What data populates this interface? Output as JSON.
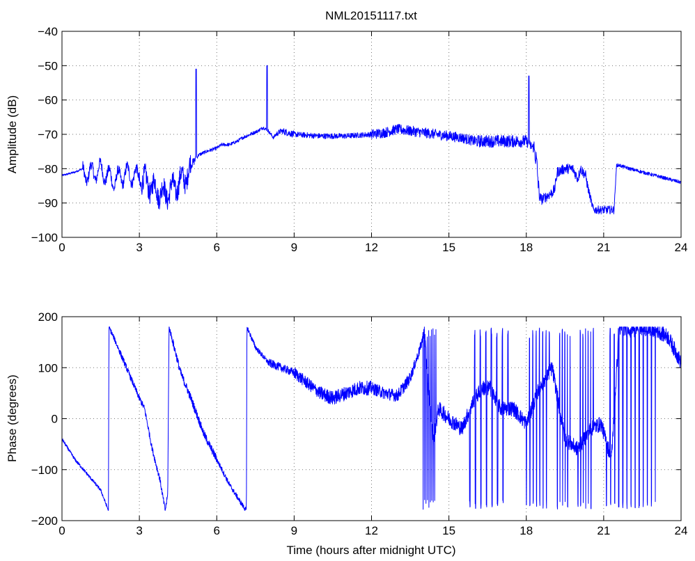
{
  "figure": {
    "title": "NML20151117.txt",
    "xlabel": "Time (hours after midnight UTC)"
  },
  "colors": {
    "trace": "#0000ff",
    "axes": "#000000",
    "background": "#ffffff"
  },
  "chart_data": [
    {
      "type": "line",
      "title": "NML20151117.txt",
      "xlabel": "",
      "ylabel": "Amplitude (dB)",
      "xlim": [
        0,
        24
      ],
      "ylim": [
        -100,
        -40
      ],
      "xticks": [
        0,
        3,
        6,
        9,
        12,
        15,
        18,
        21,
        24
      ],
      "yticks": [
        -100,
        -90,
        -80,
        -70,
        -60,
        -50,
        -40
      ],
      "xtick_labels": [
        "0",
        "3",
        "6",
        "9",
        "12",
        "15",
        "18",
        "21",
        "24"
      ],
      "ytick_labels": [
        "−100",
        "−90",
        "−80",
        "−70",
        "−60",
        "−50",
        "−40"
      ],
      "grid": true,
      "series": [
        {
          "color": "#0000ff",
          "noise_amplitude": [
            [
              0,
              0.3
            ],
            [
              0.8,
              1.5
            ],
            [
              3.0,
              3.0
            ],
            [
              5.0,
              1.2
            ],
            [
              5.2,
              0.5
            ],
            [
              8.3,
              0.8
            ],
            [
              8.6,
              1.0
            ],
            [
              9.0,
              0.8
            ],
            [
              12.0,
              1.5
            ],
            [
              16.0,
              1.8
            ],
            [
              18.0,
              1.5
            ],
            [
              18.3,
              3.0
            ],
            [
              18.5,
              1.5
            ],
            [
              20.4,
              1.2
            ],
            [
              21.4,
              0.5
            ],
            [
              24,
              0.6
            ]
          ],
          "x": [
            0,
            0.5,
            0.8,
            1.0,
            1.5,
            2.0,
            2.5,
            3.0,
            3.5,
            4.0,
            4.5,
            5.0,
            5.1,
            5.2,
            5.3,
            5.6,
            6.0,
            6.2,
            6.5,
            6.8,
            7.0,
            7.3,
            7.6,
            7.8,
            8.0,
            8.2,
            8.3,
            8.5,
            9.0,
            10.0,
            11.0,
            12.0,
            12.5,
            13.0,
            13.5,
            14.0,
            14.5,
            15.0,
            15.5,
            16.0,
            16.5,
            17.0,
            17.5,
            18.0,
            18.1,
            18.3,
            18.4,
            18.5,
            18.6,
            18.8,
            19.0,
            19.1,
            19.2,
            19.5,
            19.8,
            20.0,
            20.1,
            20.3,
            20.4,
            20.6,
            21.0,
            21.4,
            21.5,
            21.6,
            22.0,
            22.5,
            23.0,
            23.5,
            24.0
          ],
          "y": [
            -82,
            -81,
            -80,
            -80,
            -79,
            -82,
            -80,
            -81,
            -84,
            -86,
            -83,
            -79,
            -78,
            -77,
            -76,
            -75,
            -74,
            -73,
            -73,
            -72,
            -71,
            -70,
            -69,
            -68,
            -69,
            -71,
            -70,
            -69,
            -70,
            -70.5,
            -70.5,
            -70,
            -69.5,
            -68.5,
            -69,
            -69.5,
            -70,
            -70.5,
            -71,
            -72,
            -72,
            -72,
            -72,
            -72,
            -73,
            -74,
            -78,
            -88,
            -89,
            -88,
            -87,
            -86,
            -81,
            -80,
            -80,
            -83,
            -80,
            -82,
            -86,
            -92,
            -92,
            -92,
            -79,
            -79,
            -80,
            -81,
            -82,
            -83,
            -84
          ]
        }
      ],
      "spikes": [
        {
          "x": 5.2,
          "y": -51
        },
        {
          "x": 7.95,
          "y": -50
        },
        {
          "x": 18.1,
          "y": -53
        }
      ]
    },
    {
      "type": "line",
      "title": "",
      "xlabel": "Time (hours after midnight UTC)",
      "ylabel": "Phase (degrees)",
      "xlim": [
        0,
        24
      ],
      "ylim": [
        -200,
        200
      ],
      "xticks": [
        0,
        3,
        6,
        9,
        12,
        15,
        18,
        21,
        24
      ],
      "yticks": [
        -200,
        -100,
        0,
        100,
        200
      ],
      "xtick_labels": [
        "0",
        "3",
        "6",
        "9",
        "12",
        "15",
        "18",
        "21",
        "24"
      ],
      "ytick_labels": [
        "−200",
        "−100",
        "0",
        "100",
        "200"
      ],
      "grid": true,
      "series": [
        {
          "color": "#0000ff",
          "noise_amplitude": [
            [
              0,
              3
            ],
            [
              1.8,
              5
            ],
            [
              2.2,
              6
            ],
            [
              4.3,
              8
            ],
            [
              6.0,
              5
            ],
            [
              7.2,
              5
            ],
            [
              8.0,
              8
            ],
            [
              9.0,
              12
            ],
            [
              10.0,
              14
            ],
            [
              12.0,
              12
            ],
            [
              13.5,
              10
            ],
            [
              14.0,
              15
            ],
            [
              24,
              8
            ]
          ],
          "x": [
            0,
            0.5,
            1.0,
            1.5,
            1.8,
            1.82,
            2.0,
            2.5,
            3.0,
            3.2,
            3.5,
            3.8,
            4.0,
            4.1,
            4.15,
            4.3,
            4.6,
            5.0,
            5.5,
            6.0,
            6.5,
            7.0,
            7.15,
            7.17,
            7.5,
            8.0,
            8.5,
            9.0,
            9.5,
            10.0,
            10.5,
            11.0,
            11.5,
            12.0,
            12.5,
            13.0,
            13.5,
            13.9,
            14.05,
            14.2,
            14.4,
            14.6,
            15.0,
            15.5,
            16.0,
            16.3,
            16.6,
            17.0,
            17.5,
            18.0,
            18.5,
            19.0,
            19.5,
            20.0,
            20.5,
            20.9,
            21.3,
            21.6,
            22.0,
            22.5,
            23.0,
            23.5,
            24.0
          ],
          "y": [
            -40,
            -80,
            -110,
            -140,
            -180,
            180,
            160,
            100,
            40,
            20,
            -60,
            -120,
            -180,
            -150,
            180,
            150,
            90,
            40,
            -30,
            -80,
            -130,
            -170,
            -180,
            180,
            140,
            110,
            100,
            90,
            70,
            50,
            40,
            50,
            60,
            60,
            50,
            45,
            80,
            140,
            175,
            60,
            -40,
            20,
            0,
            -20,
            40,
            60,
            60,
            20,
            20,
            -10,
            60,
            100,
            -40,
            -60,
            -20,
            -10,
            -80,
            178,
            178,
            178,
            175,
            160,
            110
          ]
        }
      ],
      "phase_wraps": [
        [
          14.0,
          14.5,
          9
        ],
        [
          15.8,
          17.3,
          7
        ],
        [
          18.0,
          18.9,
          7
        ],
        [
          19.2,
          19.7,
          5
        ],
        [
          20.0,
          20.6,
          6
        ],
        [
          21.1,
          23.0,
          12
        ]
      ]
    }
  ]
}
